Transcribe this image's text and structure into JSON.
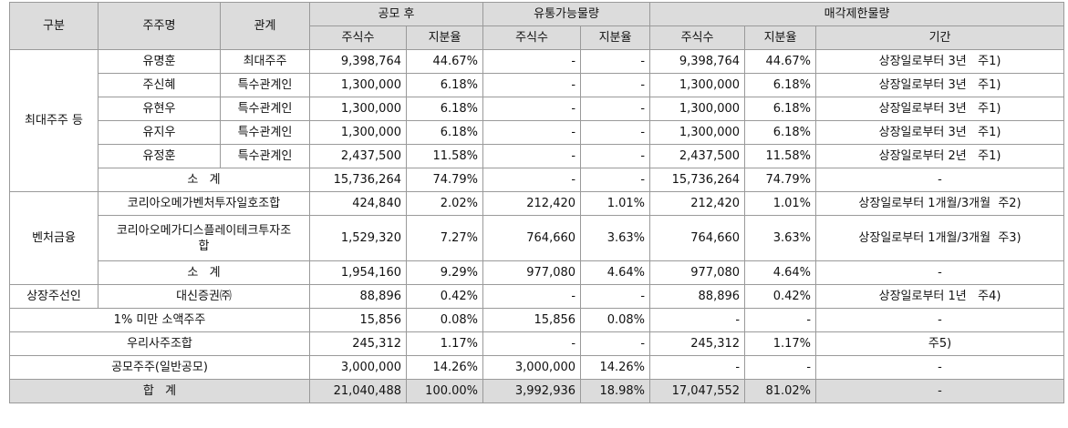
{
  "header": {
    "col_group": "구분",
    "col_holder": "주주명",
    "col_relation": "관계",
    "after_ipo": "공모 후",
    "tradable": "유통가능물량",
    "restricted": "매각제한물량",
    "shares": "주식수",
    "ratio": "지분율",
    "period": "기간"
  },
  "groups": {
    "largest": "최대주주 등",
    "venture": "벤처금융",
    "underwriter": "상장주선인"
  },
  "rows": [
    {
      "name": "유명훈",
      "relation": "최대주주",
      "shares": "9,398,764",
      "ratio": "44.67%",
      "t_shares": "-",
      "t_ratio": "-",
      "r_shares": "9,398,764",
      "r_ratio": "44.67%",
      "period": "상장일로부터 3년   주1)"
    },
    {
      "name": "주신혜",
      "relation": "특수관계인",
      "shares": "1,300,000",
      "ratio": "6.18%",
      "t_shares": "-",
      "t_ratio": "-",
      "r_shares": "1,300,000",
      "r_ratio": "6.18%",
      "period": "상장일로부터 3년   주1)"
    },
    {
      "name": "유현우",
      "relation": "특수관계인",
      "shares": "1,300,000",
      "ratio": "6.18%",
      "t_shares": "-",
      "t_ratio": "-",
      "r_shares": "1,300,000",
      "r_ratio": "6.18%",
      "period": "상장일로부터 3년   주1)"
    },
    {
      "name": "유지우",
      "relation": "특수관계인",
      "shares": "1,300,000",
      "ratio": "6.18%",
      "t_shares": "-",
      "t_ratio": "-",
      "r_shares": "1,300,000",
      "r_ratio": "6.18%",
      "period": "상장일로부터 3년   주1)"
    },
    {
      "name": "유정훈",
      "relation": "특수관계인",
      "shares": "2,437,500",
      "ratio": "11.58%",
      "t_shares": "-",
      "t_ratio": "-",
      "r_shares": "2,437,500",
      "r_ratio": "11.58%",
      "period": "상장일로부터 2년   주1)"
    },
    {
      "name": "소   계",
      "shares": "15,736,264",
      "ratio": "74.79%",
      "t_shares": "-",
      "t_ratio": "-",
      "r_shares": "15,736,264",
      "r_ratio": "74.79%",
      "period": "-"
    },
    {
      "name": "코리아오메가벤처투자일호조합",
      "shares": "424,840",
      "ratio": "2.02%",
      "t_shares": "212,420",
      "t_ratio": "1.01%",
      "r_shares": "212,420",
      "r_ratio": "1.01%",
      "period": "상장일로부터 1개월/3개월  주2)"
    },
    {
      "name": "코리아오메가디스플레이테크투자조합",
      "shares": "1,529,320",
      "ratio": "7.27%",
      "t_shares": "764,660",
      "t_ratio": "3.63%",
      "r_shares": "764,660",
      "r_ratio": "3.63%",
      "period": "상장일로부터 1개월/3개월  주3)"
    },
    {
      "name": "소   계",
      "shares": "1,954,160",
      "ratio": "9.29%",
      "t_shares": "977,080",
      "t_ratio": "4.64%",
      "r_shares": "977,080",
      "r_ratio": "4.64%",
      "period": "-"
    },
    {
      "name": "대신증권㈜",
      "shares": "88,896",
      "ratio": "0.42%",
      "t_shares": "-",
      "t_ratio": "-",
      "r_shares": "88,896",
      "r_ratio": "0.42%",
      "period": "상장일로부터 1년   주4)"
    },
    {
      "name": "1% 미만 소액주주",
      "shares": "15,856",
      "ratio": "0.08%",
      "t_shares": "15,856",
      "t_ratio": "0.08%",
      "r_shares": "-",
      "r_ratio": "-",
      "period": "-"
    },
    {
      "name": "우리사주조합",
      "shares": "245,312",
      "ratio": "1.17%",
      "t_shares": "-",
      "t_ratio": "-",
      "r_shares": "245,312",
      "r_ratio": "1.17%",
      "period": "주5)"
    },
    {
      "name": "공모주주(일반공모)",
      "shares": "3,000,000",
      "ratio": "14.26%",
      "t_shares": "3,000,000",
      "t_ratio": "14.26%",
      "r_shares": "-",
      "r_ratio": "-",
      "period": "-"
    },
    {
      "name": "합   계",
      "shares": "21,040,488",
      "ratio": "100.00%",
      "t_shares": "3,992,936",
      "t_ratio": "18.98%",
      "r_shares": "17,047,552",
      "r_ratio": "81.02%",
      "period": "-"
    }
  ]
}
